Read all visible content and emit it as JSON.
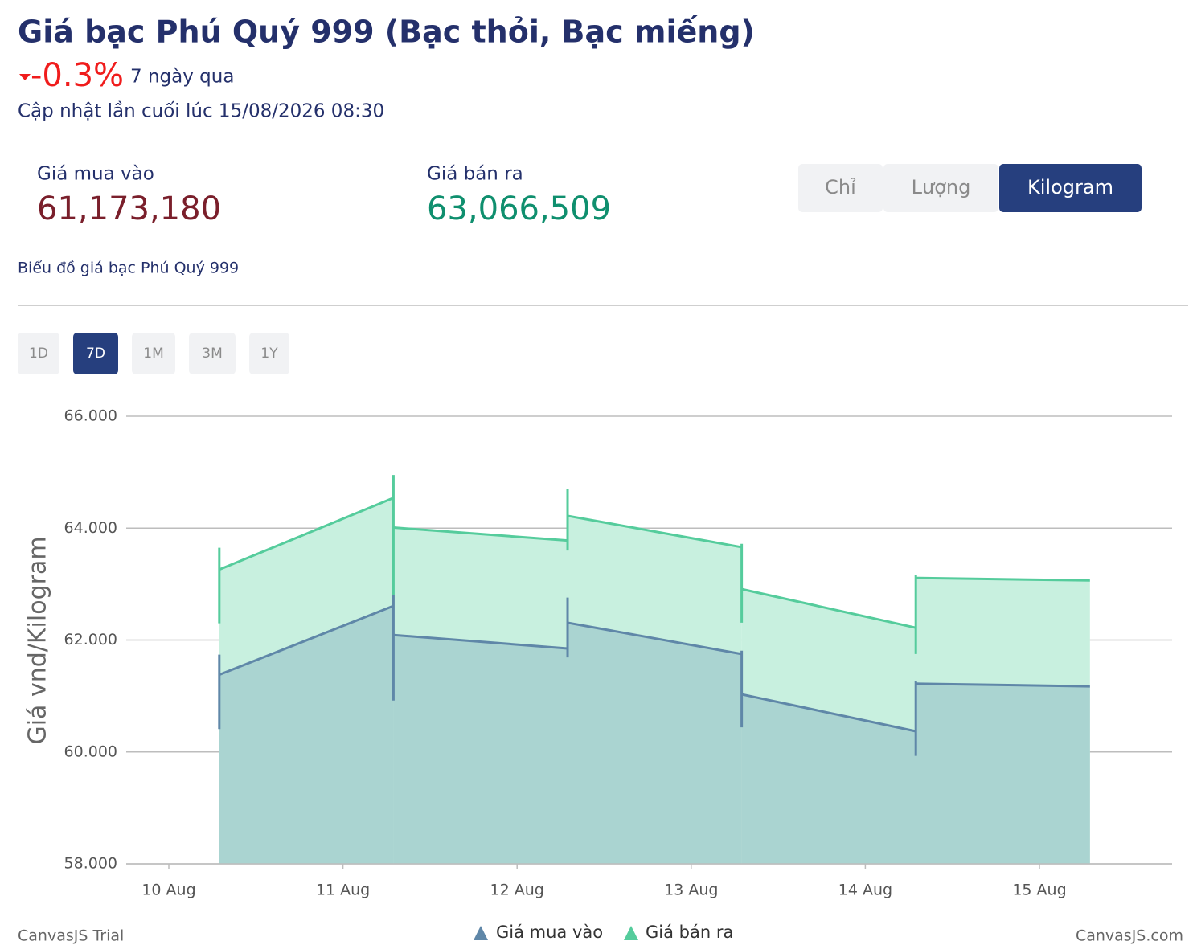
{
  "header": {
    "title": "Giá bạc Phú Quý 999 (Bạc thỏi, Bạc miếng)",
    "change": "-0.3%",
    "period": "7 ngày qua",
    "updated": "Cập nhật lần cuối lúc 15/08/2026 08:30"
  },
  "prices": {
    "buy_label": "Giá mua vào",
    "buy_value": "61,173,180",
    "sell_label": "Giá bán ra",
    "sell_value": "63,066,509"
  },
  "units": {
    "options": [
      "Chỉ",
      "Lượng",
      "Kilogram"
    ],
    "active": 2
  },
  "chart_caption": "Biểu đồ giá bạc Phú Quý 999",
  "ranges": {
    "options": [
      "1D",
      "7D",
      "1M",
      "3M",
      "1Y"
    ],
    "active": 1
  },
  "chart_data": {
    "type": "area",
    "ylabel": "Giá vnd/Kilogram",
    "categories": [
      "10 Aug",
      "11 Aug",
      "12 Aug",
      "13 Aug",
      "14 Aug",
      "15 Aug"
    ],
    "series": [
      {
        "name": "Giá bán ra",
        "color": "#55cc9c",
        "fill": "#c8f0df",
        "open": [
          63260,
          64010,
          64220,
          62910,
          63110,
          null
        ],
        "close": [
          null,
          64540,
          63780,
          63660,
          62220,
          63066
        ],
        "low": [
          62300,
          62800,
          63600,
          62310,
          61750,
          null
        ],
        "high": [
          63650,
          64950,
          64700,
          63720,
          63160,
          null
        ]
      },
      {
        "name": "Giá mua vào",
        "color": "#5f87a8",
        "fill": "#aad4d1",
        "open": [
          61380,
          62090,
          62310,
          61030,
          61220,
          null
        ],
        "close": [
          null,
          62610,
          61850,
          61750,
          60370,
          61173
        ],
        "low": [
          60410,
          60920,
          61690,
          60440,
          59930,
          null
        ],
        "high": [
          61740,
          62810,
          62760,
          61810,
          61260,
          null
        ]
      }
    ],
    "ylim": [
      58000,
      66000
    ],
    "yticks": [
      {
        "value": 58000,
        "label": "58.000"
      },
      {
        "value": 60000,
        "label": "60.000"
      },
      {
        "value": 62000,
        "label": "62.000"
      },
      {
        "value": 64000,
        "label": "64.000"
      },
      {
        "value": 66000,
        "label": "66.000"
      }
    ],
    "grid": true,
    "watermark_left": "CanvasJS Trial",
    "watermark_right": "CanvasJS.com"
  }
}
